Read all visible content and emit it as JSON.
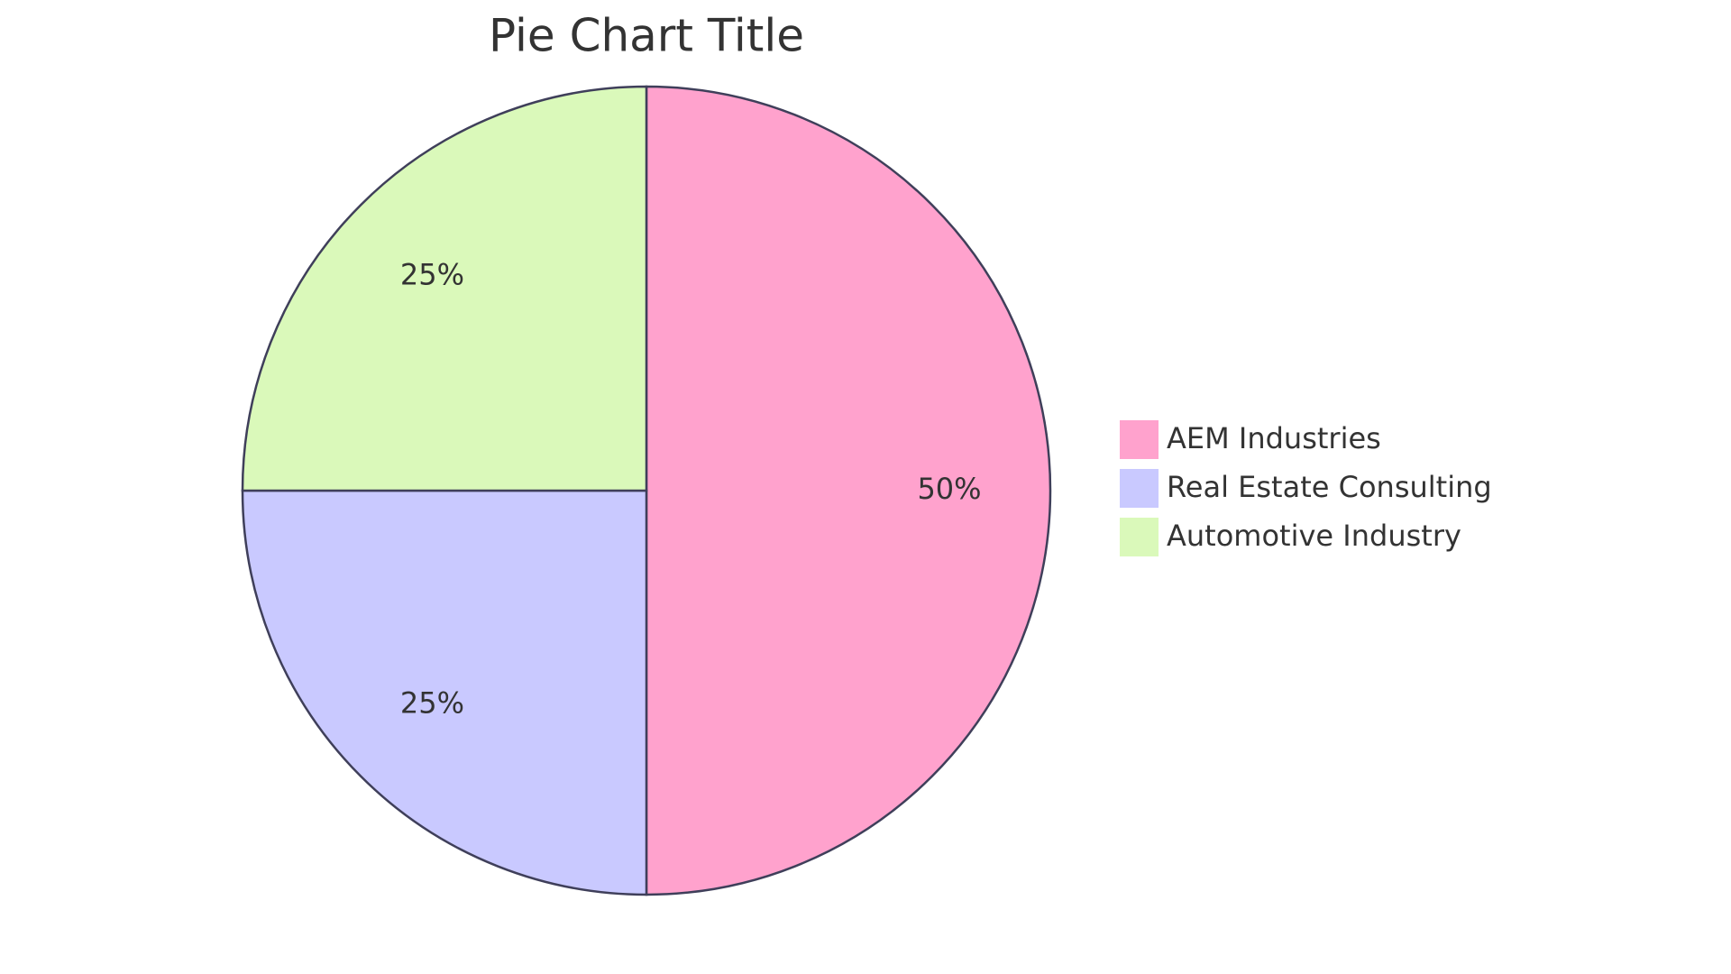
{
  "chart_data": {
    "type": "pie",
    "title": "Pie Chart Title",
    "categories": [
      "AEM Industries",
      "Real Estate Consulting",
      "Automotive Industry"
    ],
    "values": [
      50,
      25,
      25
    ],
    "value_labels": [
      "50%",
      "25%",
      "25%"
    ],
    "colors": [
      "#ffa2cd",
      "#c9c9ff",
      "#daf9ba"
    ],
    "legend": "right"
  }
}
